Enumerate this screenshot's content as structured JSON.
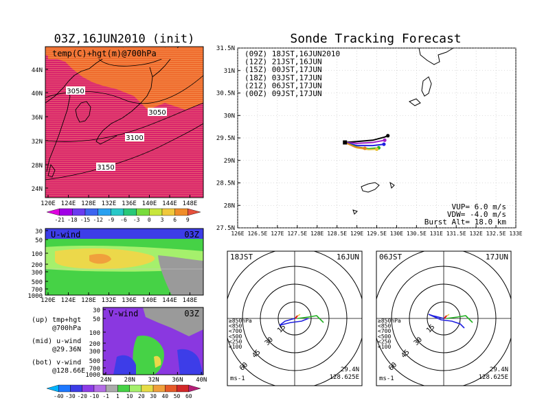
{
  "left": {
    "main_title": "03Z,16JUN2010 (init)",
    "top_panel": {
      "label": "temp(C)+hgt(m)@700hPa",
      "lat_ticks": [
        "44N",
        "40N",
        "36N",
        "32N",
        "28N",
        "24N"
      ],
      "lon_ticks": [
        "120E",
        "124E",
        "128E",
        "132E",
        "136E",
        "140E",
        "144E",
        "148E"
      ],
      "contour_labels": [
        "3050",
        "3050",
        "3100",
        "3150"
      ],
      "colorbar_ticks": [
        "-21",
        "-18",
        "-15",
        "-12",
        "-9",
        "-6",
        "-3",
        "0",
        "3",
        "6",
        "9"
      ]
    },
    "u_panel": {
      "label": "U-wind",
      "time": "03Z",
      "p_ticks": [
        "30",
        "50",
        "100",
        "200",
        "300",
        "500",
        "700",
        "1000"
      ],
      "lon_ticks": [
        "120E",
        "124E",
        "128E",
        "132E",
        "136E",
        "140E",
        "144E",
        "148E"
      ]
    },
    "v_panel": {
      "label": "V-wind",
      "time": "03Z",
      "p_ticks": [
        "30",
        "50",
        "100",
        "200",
        "300",
        "500",
        "700",
        "1000"
      ],
      "lat_ticks": [
        "24N",
        "28N",
        "32N",
        "36N",
        "40N"
      ]
    },
    "legend_lines": [
      "(up) tmp+hgt",
      "@700hPa",
      "(mid) u-wind",
      "@29.36N",
      "(bot) v-wind",
      "@128.66E"
    ],
    "wind_colorbar_ticks": [
      "-40",
      "-30",
      "-20",
      "-10",
      "-1",
      "1",
      "10",
      "20",
      "30",
      "40",
      "50",
      "60"
    ],
    "colors": {
      "warm_fill": "#d21e6a",
      "orange_fill": "#ef6a2c",
      "wind_blue": "#3d3de8",
      "wind_green": "#46d246",
      "wind_lightgreen": "#a5f06c",
      "wind_yellow": "#ecd84a",
      "wind_orange": "#f0a03c",
      "wind_gray": "#9a9a9a",
      "wind_purple": "#8a38e0"
    }
  },
  "right": {
    "main_title": "Sonde Tracking Forecast",
    "legend": [
      {
        "text": "(09Z) 18JST,16JUN2010",
        "color": "#000000"
      },
      {
        "text": "(12Z) 21JST,16JUN",
        "color": "#a020c8"
      },
      {
        "text": "(15Z) 00JST,17JUN",
        "color": "#2020e0"
      },
      {
        "text": "(18Z) 03JST,17JUN",
        "color": "#20b020"
      },
      {
        "text": "(21Z) 06JST,17JUN",
        "color": "#e6c23a"
      },
      {
        "text": "(00Z) 09JST,17JUN",
        "color": "#e08020"
      }
    ],
    "info": [
      "VUP= 6.0 m/s",
      "VDW= -4.0 m/s",
      "Burst Alt= 18.0 km"
    ],
    "lat_ticks": [
      "31.5N",
      "31N",
      "30.5N",
      "30N",
      "29.5N",
      "29N",
      "28.5N",
      "28N",
      "27.5N"
    ],
    "lon_ticks": [
      "126E",
      "126.5E",
      "127E",
      "127.5E",
      "128E",
      "128.5E",
      "129E",
      "129.5E",
      "130E",
      "130.5E",
      "131E",
      "131.5E",
      "132E",
      "132.5E",
      "133E"
    ],
    "polar_left": {
      "time": "18JST",
      "date": "16JUN",
      "ring_labels": [
        "15",
        "30",
        "45",
        "60"
      ],
      "levels": [
        {
          "text": "≥850hPa",
          "color": "#e01010"
        },
        {
          "text": "<850",
          "color": "#e08020"
        },
        {
          "text": "<700",
          "color": "#e6c23a"
        },
        {
          "text": "<500",
          "color": "#20b020"
        },
        {
          "text": "<250",
          "color": "#20a0a0"
        },
        {
          "text": "<100",
          "color": "#2020e0"
        }
      ],
      "unit": "ms-1",
      "lat": "29.4N",
      "lon": "128.625E"
    },
    "polar_right": {
      "time": "06JST",
      "date": "17JUN",
      "ring_labels": [
        "15",
        "30",
        "45",
        "60"
      ],
      "levels": [
        {
          "text": "≥850hPa",
          "color": "#e01010"
        },
        {
          "text": "<850",
          "color": "#e08020"
        },
        {
          "text": "<700",
          "color": "#e6c23a"
        },
        {
          "text": "<500",
          "color": "#20b020"
        },
        {
          "text": "<250",
          "color": "#20a0a0"
        },
        {
          "text": "<100",
          "color": "#2020e0"
        }
      ],
      "unit": "ms-1",
      "lat": "29.4N",
      "lon": "128.625E"
    }
  },
  "chart_data": [
    {
      "type": "heatmap",
      "title": "temp(C)+hgt(m)@700hPa",
      "x_range": [
        "120E",
        "150E"
      ],
      "y_range": [
        "22N",
        "48N"
      ],
      "colorbar": [
        -21,
        -18,
        -15,
        -12,
        -9,
        -6,
        -3,
        0,
        3,
        6,
        9
      ],
      "contour_labels": [
        3050,
        3050,
        3100,
        3150
      ]
    },
    {
      "type": "heatmap",
      "title": "U-wind",
      "x_range": [
        "120E",
        "150E"
      ],
      "y_ticks_hPa": [
        30,
        50,
        100,
        200,
        300,
        500,
        700,
        1000
      ]
    },
    {
      "type": "heatmap",
      "title": "V-wind",
      "x_range": [
        "24N",
        "40N"
      ],
      "y_ticks_hPa": [
        30,
        50,
        100,
        200,
        300,
        500,
        700,
        1000
      ],
      "colorbar": [
        -40,
        -30,
        -20,
        -10,
        -1,
        1,
        10,
        20,
        30,
        40,
        50,
        60
      ]
    },
    {
      "type": "line",
      "title": "Sonde Tracking Forecast",
      "xlim": [
        126,
        133
      ],
      "ylim": [
        27.5,
        31.5
      ],
      "series": [
        {
          "name": "(09Z) 18JST,16JUN2010",
          "color": "#000000",
          "points": [
            [
              128.7,
              29.4
            ],
            [
              129.0,
              29.42
            ],
            [
              129.4,
              29.45
            ],
            [
              129.7,
              29.52
            ],
            [
              129.78,
              29.55
            ]
          ]
        },
        {
          "name": "(12Z) 21JST,16JUN",
          "color": "#a020c8",
          "points": [
            [
              128.7,
              29.4
            ],
            [
              129.0,
              29.38
            ],
            [
              129.4,
              29.4
            ],
            [
              129.7,
              29.45
            ]
          ]
        },
        {
          "name": "(15Z) 00JST,17JUN",
          "color": "#2020e0",
          "points": [
            [
              128.7,
              29.4
            ],
            [
              129.0,
              29.33
            ],
            [
              129.4,
              29.33
            ],
            [
              129.68,
              29.36
            ]
          ]
        },
        {
          "name": "(18Z) 03JST,17JUN",
          "color": "#20b020",
          "points": [
            [
              128.7,
              29.4
            ],
            [
              129.0,
              29.3
            ],
            [
              129.3,
              29.26
            ],
            [
              129.55,
              29.28
            ]
          ]
        },
        {
          "name": "(21Z) 06JST,17JUN",
          "color": "#e6c23a",
          "points": [
            [
              128.7,
              29.4
            ],
            [
              129.0,
              29.28
            ],
            [
              129.3,
              29.24
            ],
            [
              129.5,
              29.25
            ]
          ]
        },
        {
          "name": "(00Z) 09JST,17JUN",
          "color": "#e08020",
          "points": [
            [
              128.7,
              29.4
            ],
            [
              128.95,
              29.3
            ],
            [
              129.2,
              29.27
            ]
          ]
        }
      ]
    }
  ]
}
